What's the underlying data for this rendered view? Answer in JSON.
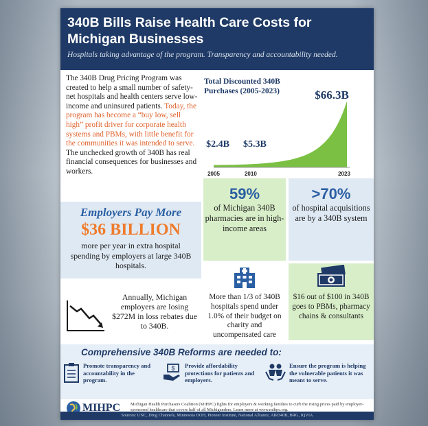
{
  "header": {
    "title": "340B Bills Raise Health Care Costs for Michigan Businesses",
    "subtitle": "Hospitals taking advantage of the program. Transparency and accountability needed."
  },
  "intro": {
    "p1": "The 340B Drug Pricing Program was created to help a small number of safety-net hospitals and health centers serve low-income and uninsured patients.",
    "p2_orange": "Today, the program has become a “buy low, sell high” profit driver for corporate health systems and PBMs, with little benefit for the communities it was intended to serve.",
    "p3": "The unchecked growth of 340B has real financial consequences for businesses and workers."
  },
  "chart_data": {
    "type": "area",
    "title": "Total Discounted 340B Purchases (2005-2023)",
    "x": [
      2005,
      2010,
      2023
    ],
    "values": [
      2.4,
      5.3,
      66.3
    ],
    "data_labels": [
      "$2.4B",
      "$5.3B",
      "$66.3B"
    ],
    "tick_labels": [
      "2005",
      "2010",
      "2023"
    ],
    "color": "#7bc043"
  },
  "employers": {
    "heading": "Employers Pay More",
    "amount": "$36 BILLION",
    "desc": "more per year in extra hospital spending by employers at large 340B hospitals."
  },
  "annual": {
    "text": "Annually, Michigan employers are losing $272M in loss rebates due to 340B.",
    "icon": "trend-down-icon"
  },
  "stats": [
    {
      "num": "59%",
      "text": "of Michigan 340B pharmacies are in high-income areas"
    },
    {
      "num": ">70%",
      "text": "of hospital acquisitions are by a 340B system"
    },
    {
      "text": "More than 1/3 of 340B hospitals spend under 1.0% of their budget on charity and uncompensated care",
      "icon": "hospital-icon"
    },
    {
      "text": "$16 out of $100 in 340B goes to PBMs, pharmacy chains & consultants",
      "icon": "money-icon"
    }
  ],
  "reforms": {
    "title": "Comprehensive 340B Reforms are needed to:",
    "items": [
      {
        "text": "Promote transparency and accountability in the program.",
        "icon": "clipboard-icon"
      },
      {
        "text": "Provide affordability protections for patients and employers.",
        "icon": "hand-money-icon"
      },
      {
        "text": "Ensure the program is helping the vulnerable patients it was meant to serve.",
        "icon": "people-hands-icon"
      }
    ]
  },
  "footer": {
    "logo": "MIHPC",
    "text": "Michigan Health Purchasers Coalition (MIHPC) fights for employers & working families to curb the rising prices paid by employer-sponsored healthcare that covers half of all Michiganders. Learn more at www.mihpc.org.",
    "sources": "Sources: UNC, Drug Channels, Minnesota DOH, Pioneer Institute, National Alliance, AIR340B, BRG, IQVIA"
  },
  "colors": {
    "navy": "#1f3a66",
    "blue": "#2b5fa3",
    "orange": "#ef7b2b",
    "green": "#7bc043",
    "light_green": "#d8eec8",
    "light_blue": "#dfe9f3"
  }
}
